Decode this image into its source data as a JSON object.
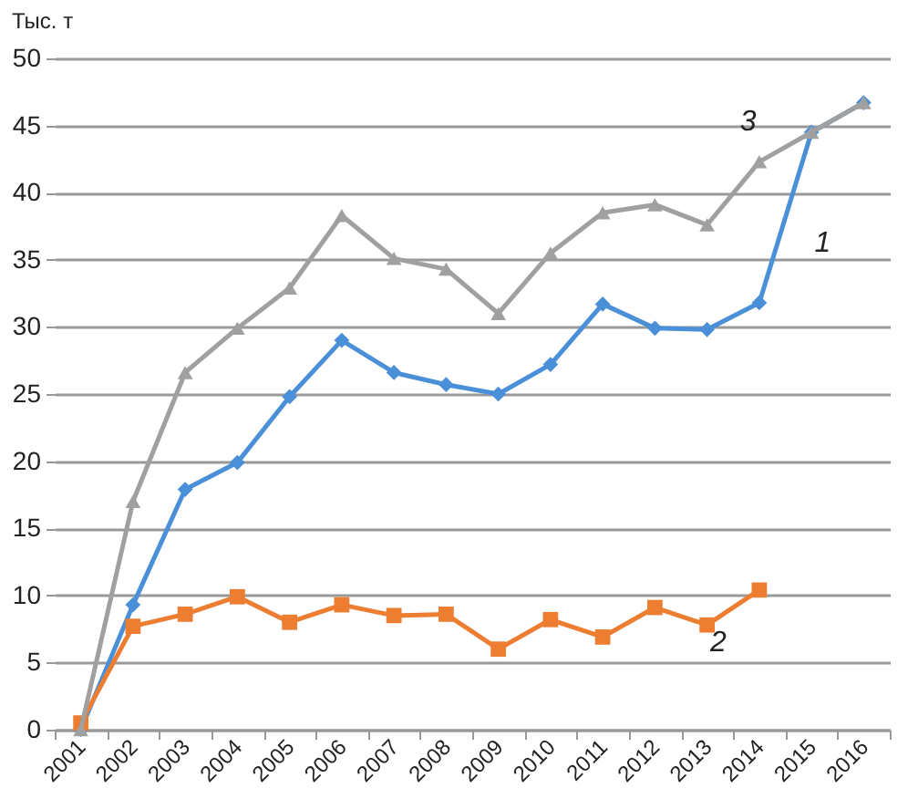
{
  "chart_data": {
    "type": "line",
    "ylabel": "Тыс. т",
    "categories": [
      "2001",
      "2002",
      "2003",
      "2004",
      "2005",
      "2006",
      "2007",
      "2008",
      "2009",
      "2010",
      "2011",
      "2012",
      "2013",
      "2014",
      "2015",
      "2016"
    ],
    "series": [
      {
        "name": "1",
        "color": "#4a90d9",
        "marker": "diamond",
        "values": [
          0,
          9.3,
          17.9,
          19.9,
          24.8,
          29,
          26.6,
          25.7,
          25,
          27.2,
          31.7,
          29.9,
          29.8,
          31.8,
          44.5,
          46.7
        ]
      },
      {
        "name": "2",
        "color": "#ed7d31",
        "marker": "square",
        "values": [
          0.5,
          7.7,
          8.6,
          9.9,
          8,
          9.3,
          8.5,
          8.6,
          6,
          8.2,
          6.9,
          9.1,
          7.8,
          10.4,
          null,
          null
        ]
      },
      {
        "name": "3",
        "color": "#a0a0a0",
        "marker": "triangle",
        "values": [
          0,
          17,
          26.6,
          29.9,
          32.9,
          38.3,
          35.1,
          34.3,
          31,
          35.5,
          38.5,
          39.1,
          37.6,
          42.3,
          44.5,
          46.7
        ]
      }
    ],
    "ylim": [
      0,
      50
    ],
    "yticks": [
      0,
      5,
      10,
      15,
      20,
      25,
      30,
      35,
      40,
      45,
      50
    ],
    "grid": "y"
  }
}
